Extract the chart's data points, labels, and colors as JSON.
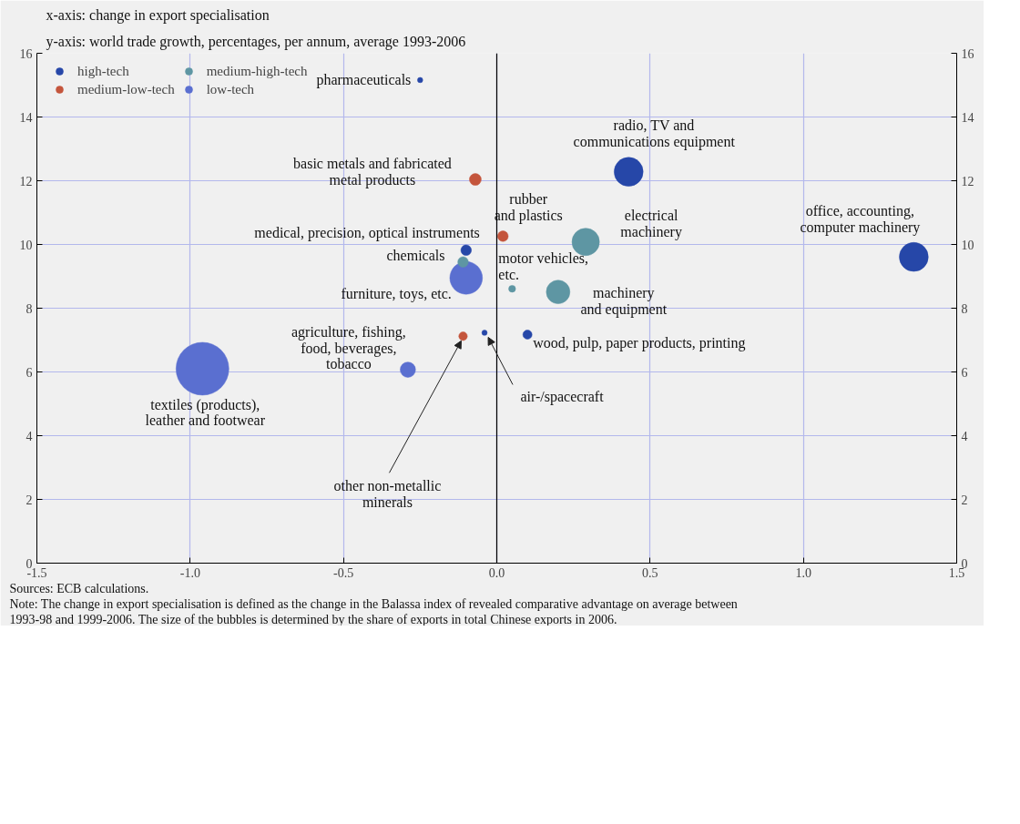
{
  "chart_data": {
    "type": "bubble",
    "xlabel": "x-axis: change in export specialisation",
    "ylabel": "y-axis: world trade growth, percentages, per annum, average 1993-2006",
    "series": [
      {
        "name": "high-tech",
        "color": "#2647a8",
        "x": [
          -0.25,
          -0.1,
          0.43,
          1.36,
          0.1,
          -0.04
        ],
        "values": [
          15.16,
          9.82,
          12.28,
          9.61,
          7.17,
          7.23
        ],
        "sizes": [
          0.01,
          0.04,
          0.3,
          0.3,
          0.03,
          0.01
        ]
      },
      {
        "name": "medium-high-tech",
        "color": "#5e96a3",
        "x": [
          -0.11,
          0.29,
          0.05,
          0.2
        ],
        "values": [
          9.45,
          10.08,
          8.61,
          8.51
        ],
        "sizes": [
          0.04,
          0.27,
          0.017,
          0.2
        ]
      },
      {
        "name": "medium-low-tech",
        "color": "#c4553c",
        "x": [
          -0.07,
          0.02,
          -0.11
        ],
        "values": [
          12.04,
          10.26,
          7.12
        ],
        "sizes": [
          0.05,
          0.04,
          0.026
        ]
      },
      {
        "name": "low-tech",
        "color": "#5a6fd0",
        "x": [
          -0.1,
          -0.29,
          -0.96
        ],
        "values": [
          8.95,
          6.07,
          6.1
        ],
        "sizes": [
          0.38,
          0.084,
          1
        ]
      }
    ],
    "xlim": [
      -1.5,
      1.5
    ],
    "xticks": [
      {
        "value": -1.5,
        "label": "-1.5"
      },
      {
        "value": -1,
        "label": "-1.0"
      },
      {
        "value": -0.5,
        "label": "-0.5"
      },
      {
        "value": 0,
        "label": "0.0"
      },
      {
        "value": 0.5,
        "label": "0.5"
      },
      {
        "value": 1,
        "label": "1.0"
      },
      {
        "value": 1.5,
        "label": "1.5"
      }
    ],
    "ylim": [
      0,
      16
    ],
    "yticks": [
      0,
      2,
      4,
      6,
      8,
      10,
      12,
      14,
      16
    ],
    "y2lim": [
      0,
      16
    ],
    "y2ticks": [
      0,
      2,
      4,
      6,
      8,
      10,
      12,
      14,
      16
    ],
    "ref_lines": [
      {
        "axis": "x",
        "value": 0,
        "color": "#000000"
      }
    ],
    "grid": true,
    "legend": "top left",
    "annotations": [
      {
        "text": "pharmaceuticals",
        "x": -0.25,
        "y": 15.16
      },
      {
        "text": "basic metals and fabricated\nmetal products",
        "x": -0.07,
        "y": 12.04
      },
      {
        "text": "medical, precision, optical instruments",
        "x": -0.1,
        "y": 9.82
      },
      {
        "text": "chemicals",
        "x": -0.11,
        "y": 9.45
      },
      {
        "text": "furniture, toys, etc.",
        "x": -0.1,
        "y": 8.95
      },
      {
        "text": "rubber\nand plastics",
        "x": 0.02,
        "y": 10.26
      },
      {
        "text": "radio, TV and\ncommunications equipment",
        "x": 0.43,
        "y": 12.28
      },
      {
        "text": "electrical\nmachinery",
        "x": 0.29,
        "y": 10.08
      },
      {
        "text": "office, accounting,\ncomputer machinery",
        "x": 1.36,
        "y": 9.61
      },
      {
        "text": "motor vehicles,\netc.",
        "x": 0.05,
        "y": 8.61
      },
      {
        "text": "machinery\nand equipment",
        "x": 0.2,
        "y": 8.51
      },
      {
        "text": "wood, pulp, paper products, printing",
        "x": 0.1,
        "y": 7.17
      },
      {
        "text": "agriculture, fishing,\nfood, beverages,\ntobacco",
        "x": -0.29,
        "y": 6.07
      },
      {
        "text": "other non-metallic\nminerals",
        "x": -0.11,
        "y": 7.12
      },
      {
        "text": "air-/spacecraft",
        "x": -0.04,
        "y": 7.23
      },
      {
        "text": "textiles (products),\nleather and footwear",
        "x": -0.96,
        "y": 6.1
      },
      "Sources: ECB calculations.",
      "Note: The change in export specialisation is defined as the change in the Balassa index of revealed comparative advantage on average between 1993-98 and 1999-2006. The size of the bubbles is determined by the share of exports in total Chinese exports in 2006."
    ]
  }
}
